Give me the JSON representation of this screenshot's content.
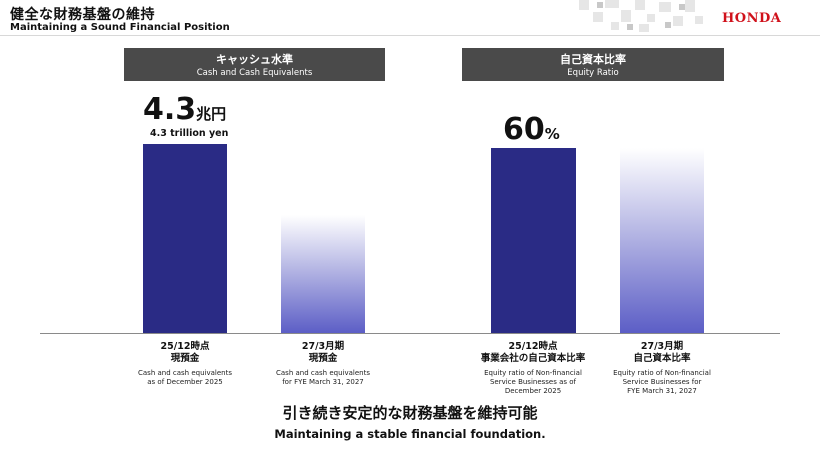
{
  "header": {
    "title_ja": "健全な財務基盤の維持",
    "title_en": "Maintaining a Sound Financial Position",
    "logo": "HONDA",
    "brand_color": "#d0111b"
  },
  "panels": [
    {
      "title_ja": "キャッシュ水準",
      "title_en": "Cash and Cash Equivalents",
      "highlight": {
        "value": "4.3",
        "unit": "兆円",
        "sub": "4.3 trillion yen"
      },
      "bars": [
        {
          "label_ja": [
            "25/12時点",
            "現預金"
          ],
          "label_en": [
            "Cash and cash equivalents",
            "as of December 2025"
          ],
          "style": "actual",
          "level": 1.0
        },
        {
          "label_ja": [
            "27/3月期",
            "現預金"
          ],
          "label_en": [
            "Cash and cash equivalents",
            "for FYE March 31, 2027"
          ],
          "style": "forecast",
          "level": 0.6
        }
      ]
    },
    {
      "title_ja": "自己資本比率",
      "title_en": "Equity Ratio",
      "highlight": {
        "value": "60",
        "unit": "%",
        "sub": ""
      },
      "bars": [
        {
          "label_ja": [
            "25/12時点",
            "事業会社の自己資本比率"
          ],
          "label_en": [
            "Equity ratio of Non-financial",
            "Service Businesses as of",
            "December 2025"
          ],
          "style": "actual",
          "level": 1.0
        },
        {
          "label_ja": [
            "27/3月期",
            "自己資本比率"
          ],
          "label_en": [
            "Equity ratio of Non-financial",
            "Service Businesses for",
            "FYE March 31, 2027"
          ],
          "style": "forecast",
          "level": 1.0
        }
      ]
    }
  ],
  "conclusion": {
    "ja": "引き続き安定的な財務基盤を維持可能",
    "en": "Maintaining a stable financial foundation."
  },
  "colors": {
    "bar_actual": "#2a2b85",
    "bar_forecast": "#5c5ec6",
    "panel_header": "#4a4a4a"
  }
}
